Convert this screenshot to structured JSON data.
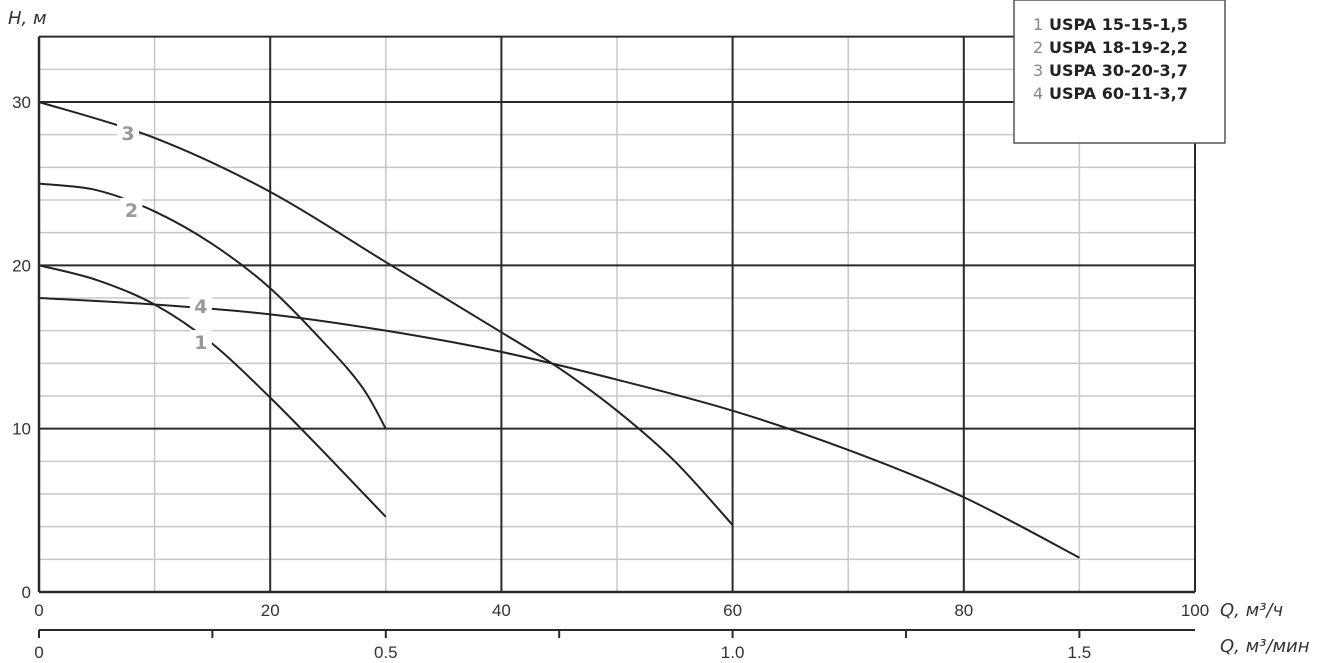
{
  "chart_data": {
    "type": "line",
    "xlabel": "Q, м³/ч",
    "x2label": "Q, м³/мин",
    "ylabel": "H, м",
    "xlim": [
      0,
      100
    ],
    "ylim": [
      0,
      34
    ],
    "x_ticks": [
      0,
      20,
      40,
      60,
      80,
      100
    ],
    "x_minor_grid": [
      10,
      30,
      50,
      70,
      90
    ],
    "y_ticks": [
      0,
      10,
      20,
      30
    ],
    "y_minor_grid_step": 2,
    "x2_ticks": [
      "0",
      "0.5",
      "1.0",
      "1.5"
    ],
    "x2_tick_values": [
      0,
      0.5,
      1.0,
      1.5
    ],
    "x2_minor_ticks": [
      0.25,
      0.75,
      1.25
    ],
    "x2_lim": [
      0,
      1.6667
    ],
    "grid": true,
    "legend_placement": "top-right",
    "series": [
      {
        "name": "USPA 15-15-1,5",
        "number": "1",
        "x": [
          0,
          5,
          10,
          15,
          20,
          25,
          30
        ],
        "y": [
          20,
          19.1,
          17.6,
          15.2,
          11.9,
          8.3,
          4.6
        ],
        "label_at": [
          14,
          15.3
        ]
      },
      {
        "name": "USPA 18-19-2,2",
        "number": "2",
        "x": [
          0,
          5,
          10,
          15,
          20,
          25,
          28,
          30
        ],
        "y": [
          25,
          24.6,
          23.3,
          21.3,
          18.6,
          15,
          12.5,
          10
        ],
        "label_at": [
          8,
          23.4
        ]
      },
      {
        "name": "USPA 30-20-3,7",
        "number": "3",
        "x": [
          0,
          10,
          20,
          30,
          40,
          45,
          50,
          55,
          60
        ],
        "y": [
          30,
          27.8,
          24.5,
          20.2,
          15.9,
          13.7,
          11.1,
          8,
          4.1
        ],
        "label_at": [
          7.7,
          28.1
        ]
      },
      {
        "name": "USPA 60-11-3,7",
        "number": "4",
        "x": [
          0,
          10,
          20,
          30,
          40,
          50,
          60,
          70,
          80,
          90
        ],
        "y": [
          18,
          17.6,
          17,
          16,
          14.7,
          13,
          11.1,
          8.7,
          5.8,
          2.1
        ],
        "label_at": [
          14,
          17.5
        ]
      }
    ],
    "colors": {
      "curve": "#222222",
      "major_grid": "#2a2a2a",
      "minor_grid": "#c8c8c8",
      "curve_label": "#999999"
    }
  }
}
